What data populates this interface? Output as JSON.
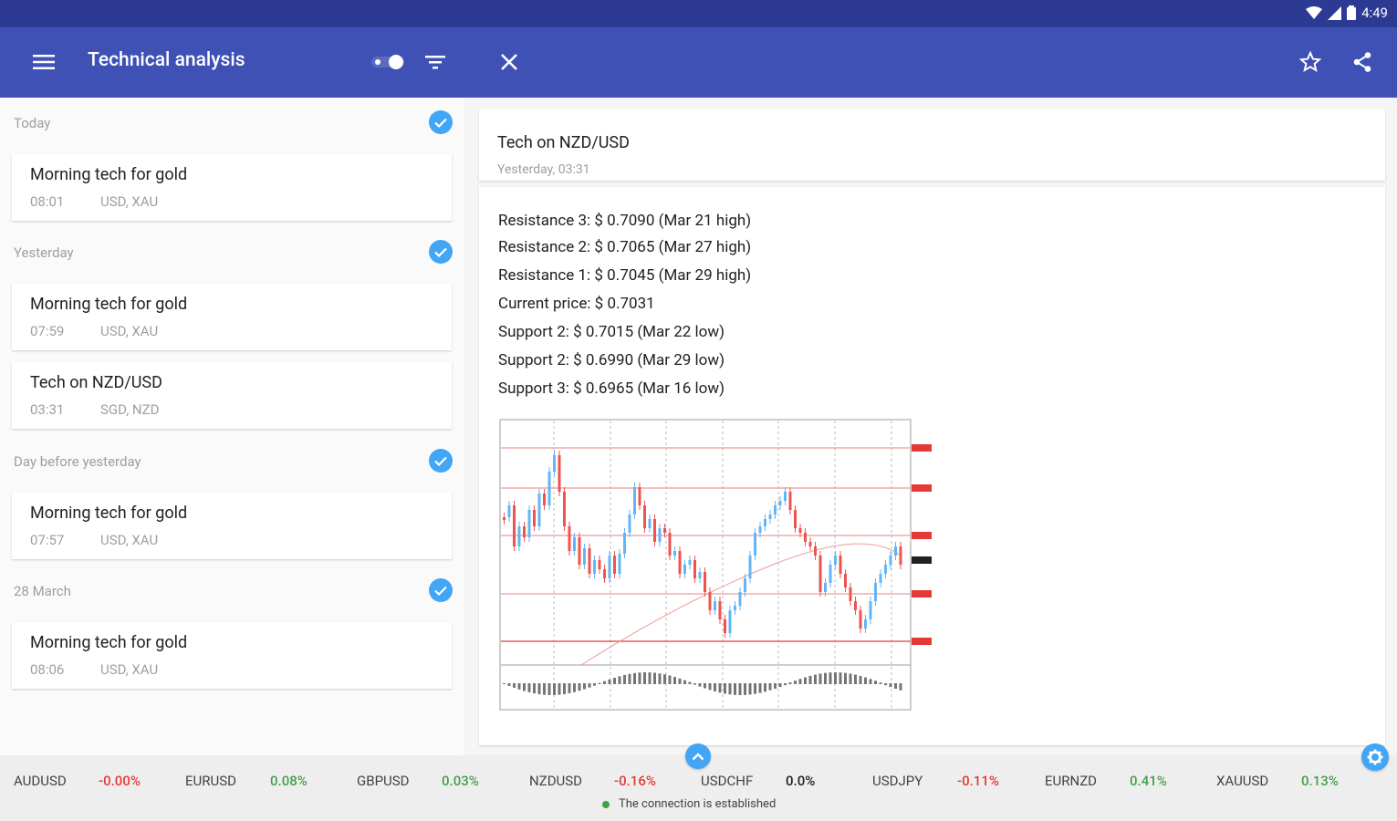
{
  "status_bar": {
    "time": "4:49"
  },
  "app_bar": {
    "title": "Technical analysis"
  },
  "list": {
    "sections": [
      {
        "header": "Today",
        "items": [
          {
            "title": "Morning tech for gold",
            "time": "08:01",
            "tags": "USD, XAU"
          }
        ]
      },
      {
        "header": "Yesterday",
        "items": [
          {
            "title": "Morning tech for gold",
            "time": "07:59",
            "tags": "USD, XAU"
          },
          {
            "title": "Tech on NZD/USD",
            "time": "03:31",
            "tags": "SGD, NZD"
          }
        ]
      },
      {
        "header": "Day before yesterday",
        "items": [
          {
            "title": "Morning tech for gold",
            "time": "07:57",
            "tags": "USD, XAU"
          }
        ]
      },
      {
        "header": "28 March",
        "items": [
          {
            "title": "Morning tech for gold",
            "time": "08:06",
            "tags": "USD, XAU"
          }
        ]
      }
    ]
  },
  "detail": {
    "title": "Tech on NZD/USD",
    "subtitle": "Yesterday, 03:31",
    "levels": [
      "Resistance 3: $ 0.7090 (Mar 21 high)",
      "Resistance 2: $ 0.7065 (Mar 27 high)",
      "Resistance 1: $ 0.7045 (Mar 29 high)",
      "Current price: $ 0.7031",
      "Support 2: $ 0.7015 (Mar 22 low)",
      "Support 2: $ 0.6990 (Mar 29 low)",
      "Support 3: $ 0.6965 (Mar 16 low)"
    ]
  },
  "ticker": {
    "items": [
      {
        "symbol": "AUDUSD",
        "change": "-0.00%",
        "color": "#e53935"
      },
      {
        "symbol": "EURUSD",
        "change": "0.08%",
        "color": "#43a047"
      },
      {
        "symbol": "GBPUSD",
        "change": "0.03%",
        "color": "#43a047"
      },
      {
        "symbol": "NZDUSD",
        "change": "-0.16%",
        "color": "#e53935"
      },
      {
        "symbol": "USDCHF",
        "change": "0.0%",
        "color": "#212121"
      },
      {
        "symbol": "USDJPY",
        "change": "-0.11%",
        "color": "#e53935"
      },
      {
        "symbol": "EURNZD",
        "change": "0.41%",
        "color": "#43a047"
      },
      {
        "symbol": "XAUUSD",
        "change": "0.13%",
        "color": "#43a047"
      }
    ],
    "connection": "The connection is established"
  },
  "colors": {
    "primary": "#3f51b5",
    "primary_dark": "#2c3a94",
    "accent": "#42a5f5",
    "up": "#43a047",
    "down": "#e53935"
  },
  "icons": [
    "menu-icon",
    "toggle-icon",
    "filter-icon",
    "close-icon",
    "star-icon",
    "share-icon",
    "check-icon",
    "chevron-up-icon",
    "gear-icon"
  ]
}
